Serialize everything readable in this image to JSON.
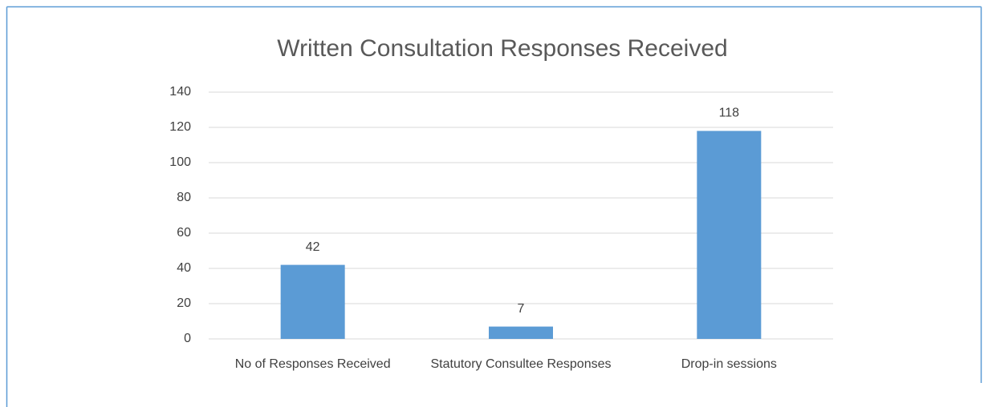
{
  "chart_data": {
    "type": "bar",
    "title": "Written Consultation Responses Received",
    "categories": [
      "No of Responses Received",
      "Statutory Consultee Responses",
      "Drop-in sessions"
    ],
    "values": [
      42,
      7,
      118
    ],
    "color": "#5b9bd5",
    "ylim": [
      0,
      140
    ],
    "yticks": [
      0,
      20,
      40,
      60,
      80,
      100,
      120,
      140
    ],
    "grid": true
  }
}
